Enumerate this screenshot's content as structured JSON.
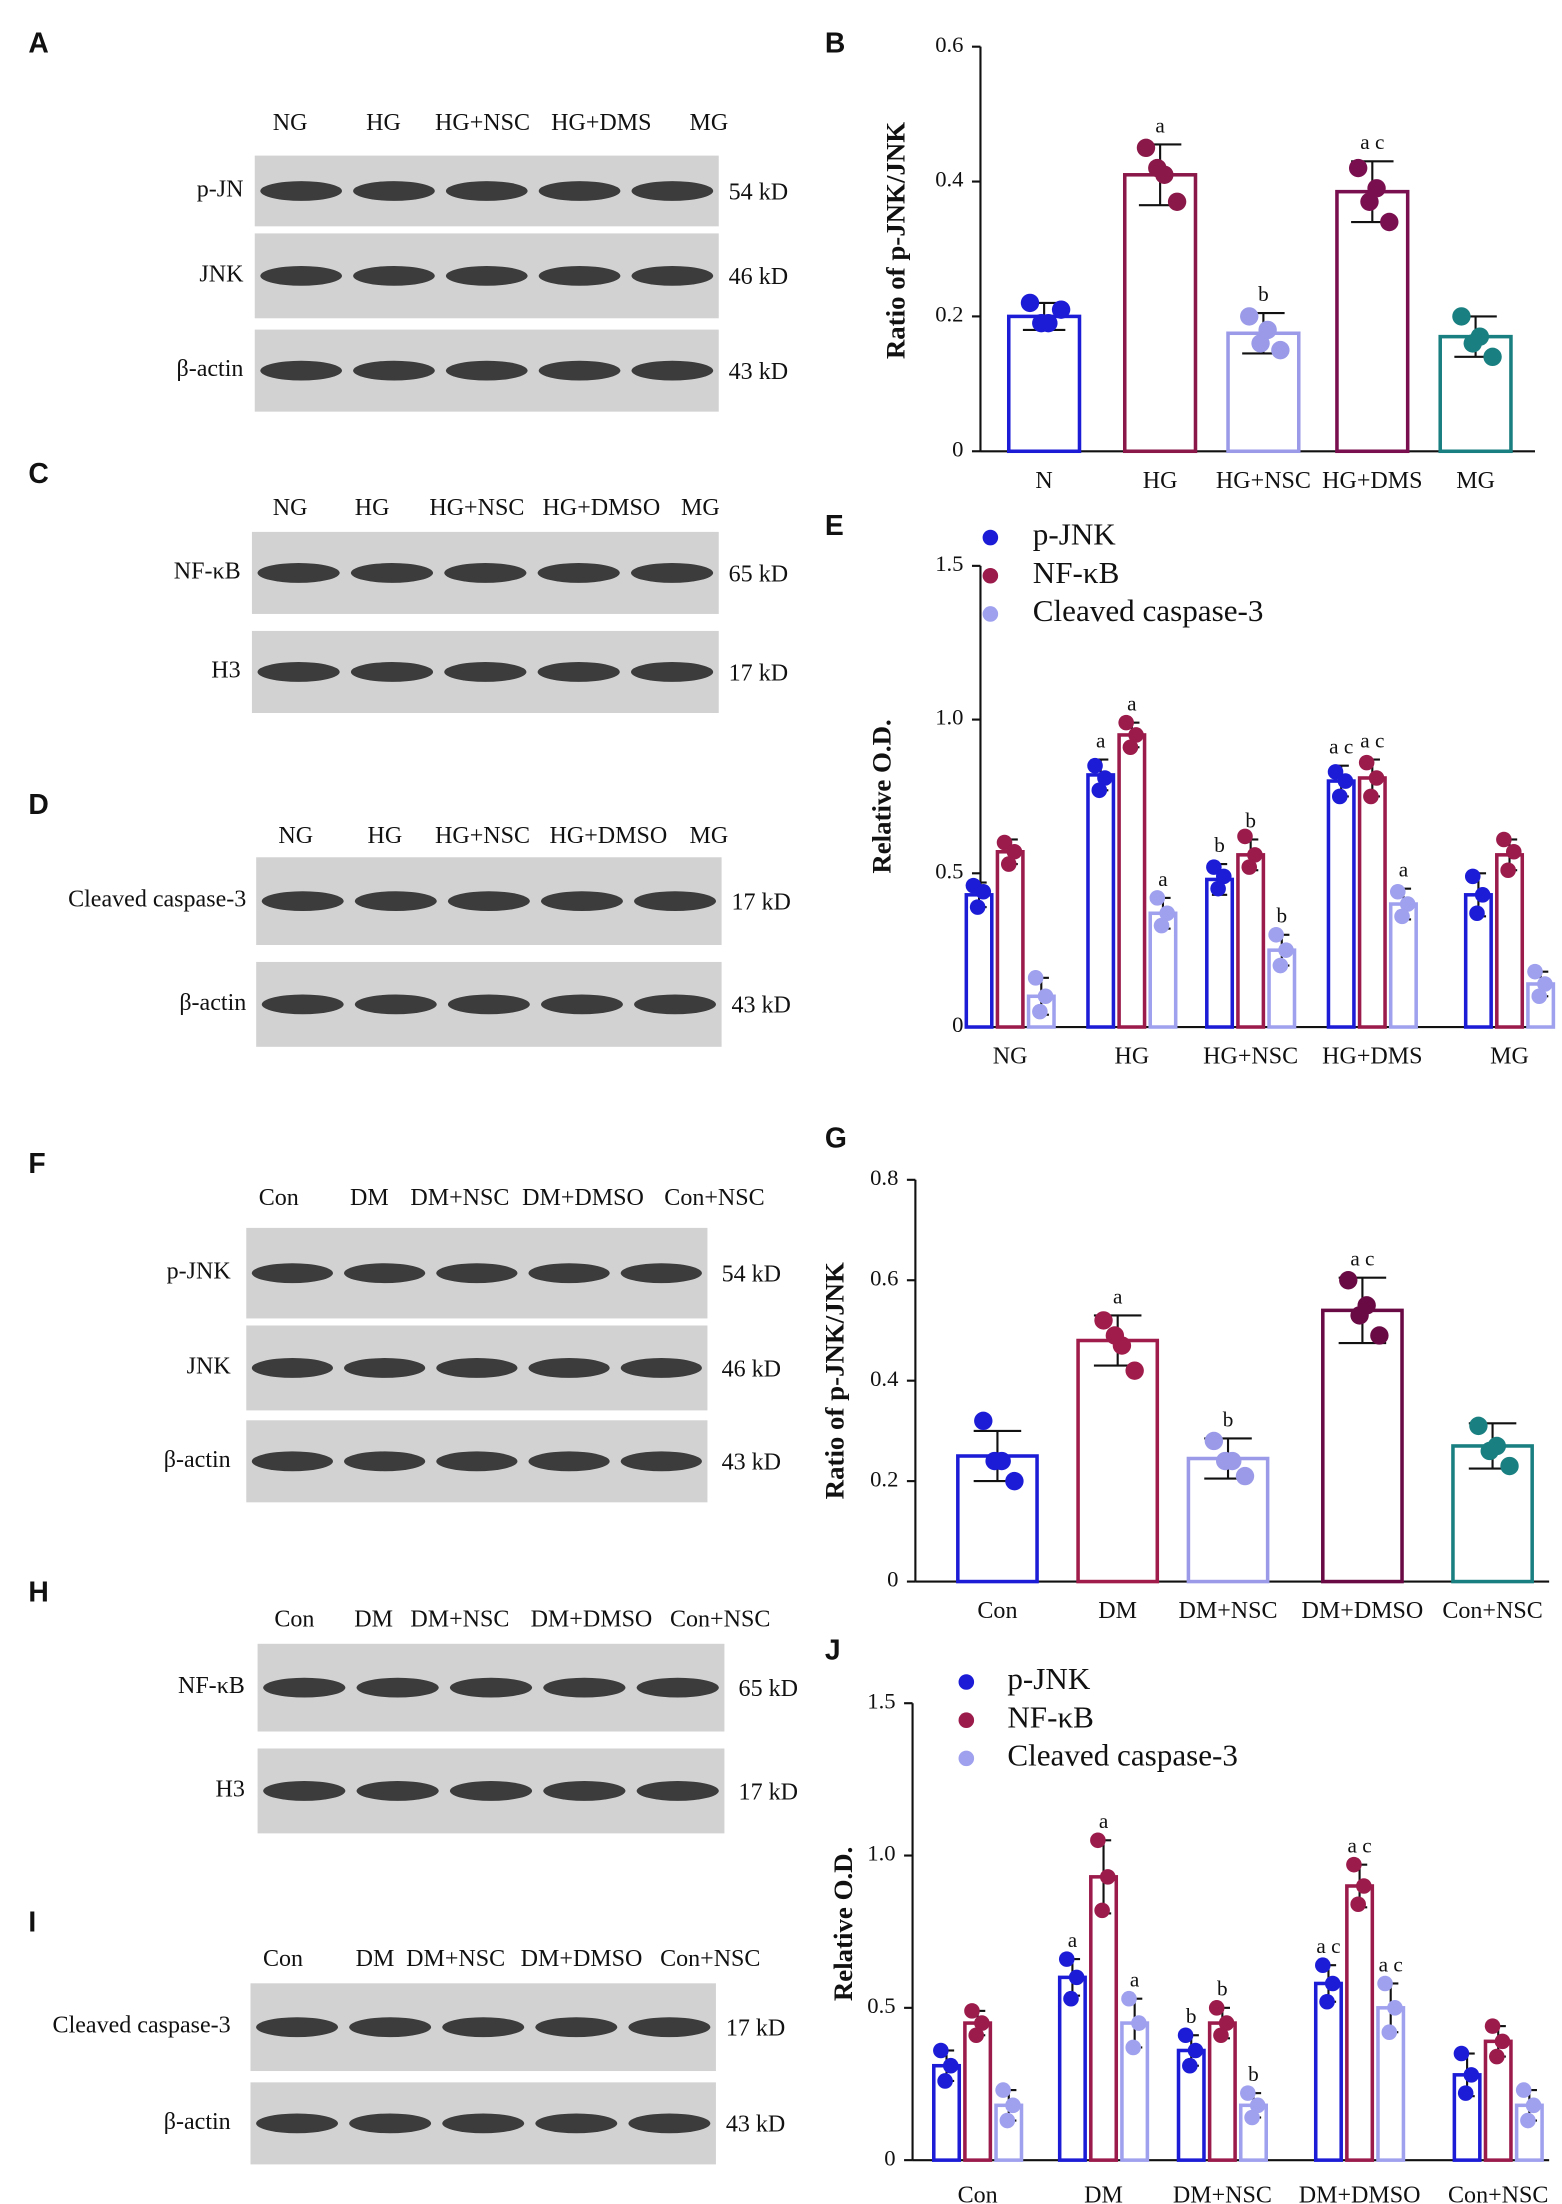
{
  "blots": [
    {
      "panel_label": "A",
      "lanes": [
        "NG",
        "HG",
        "HG+NSC",
        "HG+DMS",
        "MG"
      ],
      "rows": [
        {
          "protein": "p-JN",
          "size": "54 kD"
        },
        {
          "protein": "JNK",
          "size": "46 kD"
        },
        {
          "protein": "β-actin",
          "size": "43 kD"
        }
      ]
    },
    {
      "panel_label": "C",
      "lanes": [
        "NG",
        "HG",
        "HG+NSC",
        "HG+DMSO",
        "MG"
      ],
      "rows": [
        {
          "protein": "NF-κB",
          "size": "65 kD"
        },
        {
          "protein": "H3",
          "size": "17 kD"
        }
      ]
    },
    {
      "panel_label": "D",
      "lanes": [
        "NG",
        "HG",
        "HG+NSC",
        "HG+DMSO",
        "MG"
      ],
      "rows": [
        {
          "protein": "Cleaved caspase-3",
          "size": "17 kD"
        },
        {
          "protein": "β-actin",
          "size": "43 kD"
        }
      ]
    },
    {
      "panel_label": "F",
      "lanes": [
        "Con",
        "DM",
        "DM+NSC",
        "DM+DMSO",
        "Con+NSC"
      ],
      "rows": [
        {
          "protein": "p-JNK",
          "size": "54 kD"
        },
        {
          "protein": "JNK",
          "size": "46 kD"
        },
        {
          "protein": "β-actin",
          "size": "43 kD"
        }
      ]
    },
    {
      "panel_label": "H",
      "lanes": [
        "Con",
        "DM",
        "DM+NSC",
        "DM+DMSO",
        "Con+NSC"
      ],
      "rows": [
        {
          "protein": "NF-κB",
          "size": "65 kD"
        },
        {
          "protein": "H3",
          "size": "17 kD"
        }
      ]
    },
    {
      "panel_label": "I",
      "lanes": [
        "Con",
        "DM",
        "DM+NSC",
        "DM+DMSO",
        "Con+NSC"
      ],
      "rows": [
        {
          "protein": "Cleaved caspase-3",
          "size": "17 kD"
        },
        {
          "protein": "β-actin",
          "size": "43 kD"
        }
      ]
    }
  ],
  "chart_data": [
    {
      "panel_label": "B",
      "type": "bar",
      "y_label": "Ratio of p-JNK/JNK",
      "categories": [
        "N",
        "HG",
        "HG+NSC",
        "HG+DMS",
        "MG"
      ],
      "values": [
        0.2,
        0.41,
        0.175,
        0.385,
        0.17
      ],
      "errors": [
        0.02,
        0.045,
        0.03,
        0.045,
        0.03
      ],
      "colors": [
        "#1c1cd6",
        "#8a1848",
        "#9a9ae8",
        "#7a0f4f",
        "#1a7f80"
      ],
      "points": [
        [
          0.22,
          0.19,
          0.21,
          0.19
        ],
        [
          0.45,
          0.41,
          0.37,
          0.42
        ],
        [
          0.2,
          0.18,
          0.15,
          0.16
        ],
        [
          0.42,
          0.39,
          0.34,
          0.37
        ],
        [
          0.2,
          0.17,
          0.14,
          0.16
        ]
      ],
      "annotations": [
        null,
        "a",
        "b",
        "a c",
        null
      ],
      "ylim": [
        0,
        0.6
      ],
      "yticks": [
        0,
        0.2,
        0.4,
        0.6
      ]
    },
    {
      "panel_label": "E",
      "type": "grouped_bar",
      "y_label": "Relative O.D.",
      "categories": [
        "NG",
        "HG",
        "HG+NSC",
        "HG+DMS",
        "MG"
      ],
      "series": [
        {
          "name": "p-JNK",
          "color": "#1c1cd6",
          "values": [
            0.43,
            0.82,
            0.48,
            0.8,
            0.43
          ],
          "errors": [
            0.04,
            0.05,
            0.05,
            0.05,
            0.07
          ],
          "points": [
            [
              0.46,
              0.44,
              0.39
            ],
            [
              0.85,
              0.81,
              0.77
            ],
            [
              0.52,
              0.49,
              0.45
            ],
            [
              0.83,
              0.8,
              0.75
            ],
            [
              0.49,
              0.43,
              0.37
            ]
          ],
          "annotations": [
            null,
            "a",
            "b",
            "a c",
            null
          ]
        },
        {
          "name": "NF-κB",
          "color": "#9b1b4b",
          "values": [
            0.57,
            0.95,
            0.56,
            0.81,
            0.56
          ],
          "errors": [
            0.04,
            0.04,
            0.05,
            0.06,
            0.05
          ],
          "points": [
            [
              0.6,
              0.57,
              0.53
            ],
            [
              0.99,
              0.95,
              0.91
            ],
            [
              0.62,
              0.56,
              0.52
            ],
            [
              0.86,
              0.81,
              0.75
            ],
            [
              0.61,
              0.57,
              0.51
            ]
          ],
          "annotations": [
            null,
            "a",
            "b",
            "a c",
            null
          ]
        },
        {
          "name": "Cleaved caspase-3",
          "color": "#9fa0ee",
          "values": [
            0.1,
            0.37,
            0.25,
            0.4,
            0.14
          ],
          "errors": [
            0.06,
            0.05,
            0.05,
            0.05,
            0.04
          ],
          "points": [
            [
              0.16,
              0.1,
              0.05
            ],
            [
              0.42,
              0.37,
              0.33
            ],
            [
              0.3,
              0.25,
              0.2
            ],
            [
              0.44,
              0.4,
              0.36
            ],
            [
              0.18,
              0.14,
              0.1
            ]
          ],
          "annotations": [
            null,
            "a",
            "b",
            "a",
            null
          ]
        }
      ],
      "ylim": [
        0,
        1.5
      ],
      "yticks": [
        0,
        0.5,
        {
          "value": 1,
          "label": "1.0"
        },
        1.5
      ]
    },
    {
      "panel_label": "G",
      "type": "bar",
      "y_label": "Ratio of p-JNK/JNK",
      "categories": [
        "Con",
        "DM",
        "DM+NSC",
        "DM+DMSO",
        "Con+NSC"
      ],
      "values": [
        0.25,
        0.48,
        0.245,
        0.54,
        0.27
      ],
      "errors": [
        0.05,
        0.05,
        0.04,
        0.065,
        0.045
      ],
      "colors": [
        "#1c1cd6",
        "#a01c4a",
        "#9a9ae8",
        "#6a0a45",
        "#1a7f80"
      ],
      "points": [
        [
          0.32,
          0.24,
          0.2,
          0.24
        ],
        [
          0.52,
          0.47,
          0.42,
          0.49
        ],
        [
          0.28,
          0.24,
          0.21,
          0.24
        ],
        [
          0.6,
          0.55,
          0.49,
          0.53
        ],
        [
          0.31,
          0.27,
          0.23,
          0.26
        ]
      ],
      "annotations": [
        null,
        "a",
        "b",
        "a c",
        null
      ],
      "ylim": [
        0,
        0.8
      ],
      "yticks": [
        0,
        0.2,
        0.4,
        0.6,
        0.8
      ]
    },
    {
      "panel_label": "J",
      "type": "grouped_bar",
      "y_label": "Relative O.D.",
      "categories": [
        "Con",
        "DM",
        "DM+NSC",
        "DM+DMSO",
        "Con+NSC"
      ],
      "series": [
        {
          "name": "p-JNK",
          "color": "#1c1cd6",
          "values": [
            0.31,
            0.6,
            0.36,
            0.58,
            0.28
          ],
          "errors": [
            0.05,
            0.06,
            0.05,
            0.06,
            0.07
          ],
          "points": [
            [
              0.36,
              0.31,
              0.26
            ],
            [
              0.66,
              0.6,
              0.53
            ],
            [
              0.41,
              0.36,
              0.31
            ],
            [
              0.64,
              0.58,
              0.52
            ],
            [
              0.35,
              0.28,
              0.22
            ]
          ],
          "annotations": [
            null,
            "a",
            "b",
            "a c",
            null
          ]
        },
        {
          "name": "NF-κB",
          "color": "#9b1b4b",
          "values": [
            0.45,
            0.93,
            0.45,
            0.9,
            0.39
          ],
          "errors": [
            0.04,
            0.12,
            0.05,
            0.07,
            0.05
          ],
          "points": [
            [
              0.49,
              0.45,
              0.41
            ],
            [
              1.05,
              0.93,
              0.82
            ],
            [
              0.5,
              0.45,
              0.41
            ],
            [
              0.97,
              0.9,
              0.84
            ],
            [
              0.44,
              0.39,
              0.34
            ]
          ],
          "annotations": [
            null,
            "a",
            "b",
            "a c",
            null
          ]
        },
        {
          "name": "Cleaved caspase-3",
          "color": "#9fa0ee",
          "values": [
            0.18,
            0.45,
            0.18,
            0.5,
            0.18
          ],
          "errors": [
            0.05,
            0.08,
            0.04,
            0.08,
            0.05
          ],
          "points": [
            [
              0.23,
              0.18,
              0.13
            ],
            [
              0.53,
              0.45,
              0.37
            ],
            [
              0.22,
              0.18,
              0.14
            ],
            [
              0.58,
              0.5,
              0.42
            ],
            [
              0.23,
              0.18,
              0.13
            ]
          ],
          "annotations": [
            null,
            "a",
            "b",
            "a c",
            null
          ]
        }
      ],
      "ylim": [
        0,
        1.5
      ],
      "yticks": [
        0,
        0.5,
        {
          "value": 1,
          "label": "1.0"
        },
        1.5
      ]
    }
  ]
}
